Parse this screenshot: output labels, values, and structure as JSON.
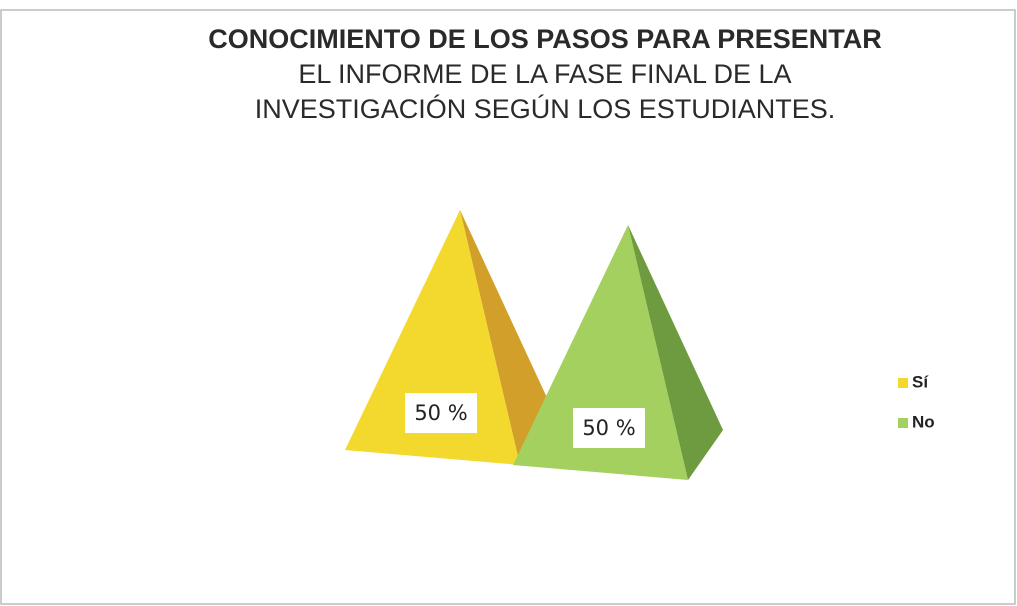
{
  "chart_data": {
    "type": "pyramid",
    "title": [
      "CONOCIMIENTO DE  LOS PASOS PARA PRESENTAR",
      "EL INFORME DE LA FASE FINAL DE LA",
      "INVESTIGACIÓN SEGÚN LOS ESTUDIANTES."
    ],
    "categories": [
      "Sí",
      "No"
    ],
    "values": [
      50,
      50
    ],
    "value_labels": [
      "50 %",
      "50 %"
    ],
    "colors": [
      "#f3d92e",
      "#a3d05e"
    ],
    "legend": "right"
  }
}
